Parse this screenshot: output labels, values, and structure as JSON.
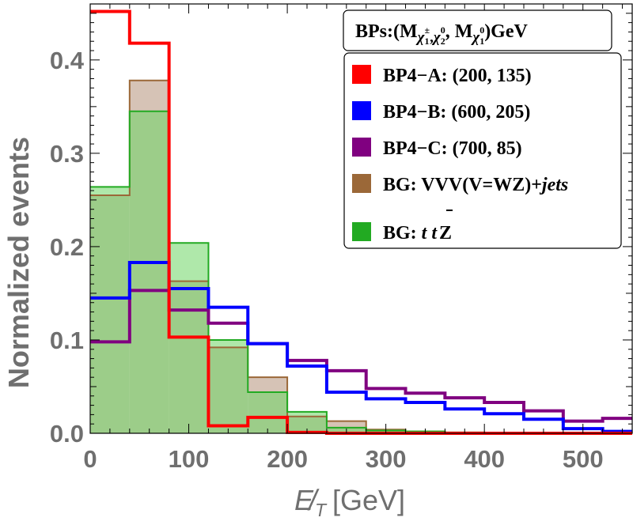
{
  "chart_data": {
    "type": "histogram",
    "xlabel": "E̸",
    "xlabel_sub": "T",
    "xlabel_unit": "[GeV]",
    "ylabel": "Normalized events",
    "xlim": [
      0,
      550
    ],
    "ylim": [
      0,
      0.46
    ],
    "xticks": [
      0,
      100,
      200,
      300,
      400,
      500
    ],
    "yticks": [
      "0.0",
      "0.1",
      "0.2",
      "0.3",
      "0.4"
    ],
    "ytick_values": [
      0.0,
      0.1,
      0.2,
      0.3,
      0.4
    ],
    "bin_edges": [
      0,
      40,
      80,
      120,
      160,
      200,
      240,
      280,
      320,
      360,
      400,
      440,
      480,
      520,
      560
    ],
    "legend_title": {
      "prefix": "BPs:(M",
      "sub1": "χ",
      "sub1_sub": "1",
      "sub1_sup": "±",
      "comma1": ",",
      "sub2": "χ",
      "sub2_sub": "2",
      "sub2_sup": "0",
      "middle": ", M",
      "sub3": "χ",
      "sub3_sub": "1",
      "sub3_sup": "0",
      "suffix": ")GeV"
    },
    "series": [
      {
        "name": "BP4−A: (200, 135)",
        "color": "#ff0000",
        "style": "line",
        "values": [
          0.452,
          0.418,
          0.103,
          0.008,
          0.017,
          0.001,
          0.0,
          0.0,
          0.0,
          0.0,
          0.0,
          0.0,
          0.0,
          0.0
        ]
      },
      {
        "name": "BP4−B: (600, 205)",
        "color": "#0000ff",
        "style": "line",
        "values": [
          0.145,
          0.183,
          0.155,
          0.135,
          0.096,
          0.072,
          0.044,
          0.037,
          0.033,
          0.026,
          0.021,
          0.015,
          0.005,
          0.002
        ]
      },
      {
        "name": "BP4−C: (700, 85)",
        "color": "#800080",
        "style": "line",
        "values": [
          0.098,
          0.153,
          0.132,
          0.118,
          0.096,
          0.078,
          0.067,
          0.048,
          0.043,
          0.038,
          0.033,
          0.024,
          0.013,
          0.016
        ]
      },
      {
        "name_prefix": "BG: VVV(V=WZ)+",
        "name_italic": "jets",
        "color": "#9b6838",
        "fill": "#d6c3b6",
        "style": "filled",
        "values": [
          0.255,
          0.378,
          0.163,
          0.092,
          0.06,
          0.018,
          0.013,
          0.004,
          0.002,
          0.001,
          0.0,
          0.0,
          0.0,
          0.0
        ]
      },
      {
        "name_prefix": "BG: ",
        "name_italic": "t t",
        "name_suffix": "Z",
        "color": "#22aa22",
        "fill": "rgba(110,214,100,0.55)",
        "style": "filled",
        "values": [
          0.264,
          0.345,
          0.204,
          0.1,
          0.044,
          0.023,
          0.006,
          0.003,
          0.002,
          0.001,
          0.0,
          0.0,
          0.0,
          0.0
        ]
      }
    ]
  }
}
